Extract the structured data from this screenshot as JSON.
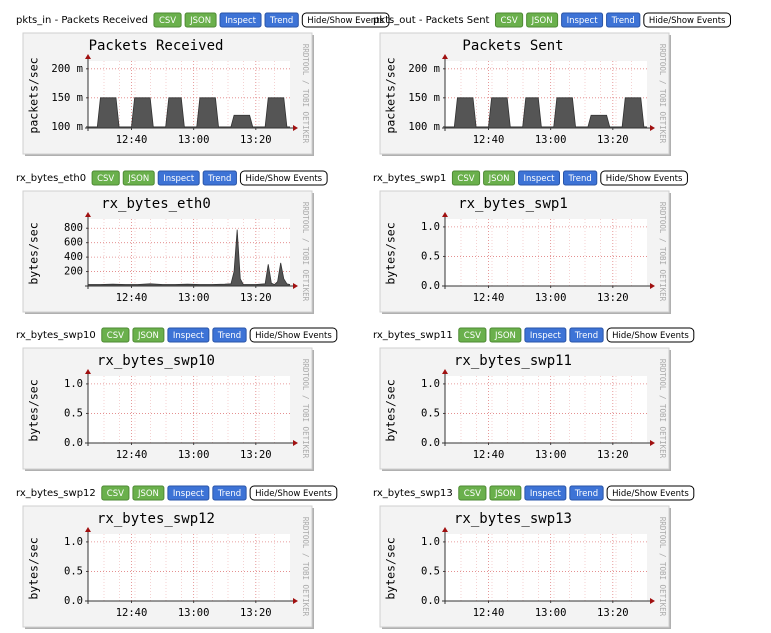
{
  "panels": [
    {
      "label": "pkts_in - Packets Received",
      "buttons": [
        "CSV",
        "JSON",
        "Inspect",
        "Trend",
        "Hide/Show Events"
      ]
    },
    {
      "label": "pkts_out - Packets Sent",
      "buttons": [
        "CSV",
        "JSON",
        "Inspect",
        "Trend",
        "Hide/Show Events"
      ]
    },
    {
      "label": "rx_bytes_eth0",
      "buttons": [
        "CSV",
        "JSON",
        "Inspect",
        "Trend",
        "Hide/Show Events"
      ]
    },
    {
      "label": "rx_bytes_swp1",
      "buttons": [
        "CSV",
        "JSON",
        "Inspect",
        "Trend",
        "Hide/Show Events"
      ]
    },
    {
      "label": "rx_bytes_swp10",
      "buttons": [
        "CSV",
        "JSON",
        "Inspect",
        "Trend",
        "Hide/Show Events"
      ]
    },
    {
      "label": "rx_bytes_swp11",
      "buttons": [
        "CSV",
        "JSON",
        "Inspect",
        "Trend",
        "Hide/Show Events"
      ]
    },
    {
      "label": "rx_bytes_swp12",
      "buttons": [
        "CSV",
        "JSON",
        "Inspect",
        "Trend",
        "Hide/Show Events"
      ]
    },
    {
      "label": "rx_bytes_swp13",
      "buttons": [
        "CSV",
        "JSON",
        "Inspect",
        "Trend",
        "Hide/Show Events"
      ]
    }
  ],
  "chart_data": [
    {
      "type": "area",
      "title": "Packets Received",
      "y_label": "packets/sec",
      "watermark": "RRDTOOL / TOBI OETIKER",
      "color": "#555555",
      "x": [
        746,
        749,
        750,
        755,
        756,
        760,
        761,
        766,
        767,
        771,
        772,
        776,
        777,
        781,
        782,
        787,
        788,
        792,
        793,
        798,
        799,
        803,
        804,
        809,
        810,
        811
      ],
      "values": [
        0.1,
        0.1,
        0.15,
        0.15,
        0.1,
        0.1,
        0.15,
        0.15,
        0.1,
        0.1,
        0.15,
        0.15,
        0.1,
        0.1,
        0.15,
        0.15,
        0.1,
        0.1,
        0.12,
        0.12,
        0.1,
        0.1,
        0.15,
        0.15,
        0.1,
        0.1
      ],
      "xlim": [
        746,
        811
      ],
      "xticks": [
        {
          "value": 760,
          "label": "12:40"
        },
        {
          "value": 780,
          "label": "13:00"
        },
        {
          "value": 800,
          "label": "13:20"
        }
      ],
      "ylim": [
        0.098,
        0.21
      ],
      "yticks": [
        {
          "value": 0.1,
          "label": "100 m"
        },
        {
          "value": 0.15,
          "label": "150 m"
        },
        {
          "value": 0.2,
          "label": "200 m"
        }
      ],
      "grid": true
    },
    {
      "type": "area",
      "title": "Packets Sent",
      "y_label": "packets/sec",
      "watermark": "RRDTOOL / TOBI OETIKER",
      "color": "#555555",
      "x": [
        746,
        749,
        750,
        755,
        756,
        760,
        761,
        766,
        767,
        771,
        772,
        776,
        777,
        781,
        782,
        787,
        788,
        792,
        793,
        798,
        799,
        803,
        804,
        809,
        810,
        811
      ],
      "values": [
        0.1,
        0.1,
        0.15,
        0.15,
        0.1,
        0.1,
        0.15,
        0.15,
        0.1,
        0.1,
        0.15,
        0.15,
        0.1,
        0.1,
        0.15,
        0.15,
        0.1,
        0.1,
        0.12,
        0.12,
        0.1,
        0.1,
        0.15,
        0.15,
        0.1,
        0.1
      ],
      "xlim": [
        746,
        811
      ],
      "xticks": [
        {
          "value": 760,
          "label": "12:40"
        },
        {
          "value": 780,
          "label": "13:00"
        },
        {
          "value": 800,
          "label": "13:20"
        }
      ],
      "ylim": [
        0.098,
        0.21
      ],
      "yticks": [
        {
          "value": 0.1,
          "label": "100 m"
        },
        {
          "value": 0.15,
          "label": "150 m"
        },
        {
          "value": 0.2,
          "label": "200 m"
        }
      ],
      "grid": true
    },
    {
      "type": "area",
      "title": "rx_bytes_eth0",
      "y_label": "bytes/sec",
      "watermark": "RRDTOOL / TOBI OETIKER",
      "color": "#555555",
      "x": [
        746,
        750,
        754,
        758,
        762,
        766,
        770,
        774,
        778,
        782,
        786,
        790,
        792,
        793,
        794,
        795,
        796,
        800,
        803,
        804,
        805,
        806,
        807,
        808,
        809,
        810,
        811
      ],
      "values": [
        20,
        20,
        25,
        20,
        20,
        30,
        20,
        20,
        25,
        20,
        20,
        25,
        30,
        200,
        780,
        100,
        20,
        20,
        30,
        300,
        40,
        20,
        60,
        320,
        100,
        30,
        20
      ],
      "xlim": [
        746,
        811
      ],
      "xticks": [
        {
          "value": 760,
          "label": "12:40"
        },
        {
          "value": 780,
          "label": "13:00"
        },
        {
          "value": 800,
          "label": "13:20"
        }
      ],
      "ylim": [
        0,
        900
      ],
      "yticks": [
        200,
        400,
        600,
        800
      ],
      "grid": true
    },
    {
      "type": "area",
      "title": "rx_bytes_swp1",
      "y_label": "bytes/sec",
      "watermark": "RRDTOOL / TOBI OETIKER",
      "color": "#555555",
      "x": [
        746,
        811
      ],
      "values": [
        0,
        0
      ],
      "xlim": [
        746,
        811
      ],
      "xticks": [
        {
          "value": 760,
          "label": "12:40"
        },
        {
          "value": 780,
          "label": "13:00"
        },
        {
          "value": 800,
          "label": "13:20"
        }
      ],
      "ylim": [
        0,
        1.1
      ],
      "yticks": [
        {
          "value": 0,
          "label": "0.0"
        },
        {
          "value": 0.5,
          "label": "0.5"
        },
        {
          "value": 1,
          "label": "1.0"
        }
      ],
      "grid": true
    },
    {
      "type": "area",
      "title": "rx_bytes_swp10",
      "y_label": "bytes/sec",
      "watermark": "RRDTOOL / TOBI OETIKER",
      "color": "#555555",
      "x": [
        746,
        811
      ],
      "values": [
        0,
        0
      ],
      "xlim": [
        746,
        811
      ],
      "xticks": [
        {
          "value": 760,
          "label": "12:40"
        },
        {
          "value": 780,
          "label": "13:00"
        },
        {
          "value": 800,
          "label": "13:20"
        }
      ],
      "ylim": [
        0,
        1.1
      ],
      "yticks": [
        {
          "value": 0,
          "label": "0.0"
        },
        {
          "value": 0.5,
          "label": "0.5"
        },
        {
          "value": 1,
          "label": "1.0"
        }
      ],
      "grid": true
    },
    {
      "type": "area",
      "title": "rx_bytes_swp11",
      "y_label": "bytes/sec",
      "watermark": "RRDTOOL / TOBI OETIKER",
      "color": "#555555",
      "x": [
        746,
        811
      ],
      "values": [
        0,
        0
      ],
      "xlim": [
        746,
        811
      ],
      "xticks": [
        {
          "value": 760,
          "label": "12:40"
        },
        {
          "value": 780,
          "label": "13:00"
        },
        {
          "value": 800,
          "label": "13:20"
        }
      ],
      "ylim": [
        0,
        1.1
      ],
      "yticks": [
        {
          "value": 0,
          "label": "0.0"
        },
        {
          "value": 0.5,
          "label": "0.5"
        },
        {
          "value": 1,
          "label": "1.0"
        }
      ],
      "grid": true
    },
    {
      "type": "area",
      "title": "rx_bytes_swp12",
      "y_label": "bytes/sec",
      "watermark": "RRDTOOL / TOBI OETIKER",
      "color": "#555555",
      "x": [
        746,
        811
      ],
      "values": [
        0,
        0
      ],
      "xlim": [
        746,
        811
      ],
      "xticks": [
        {
          "value": 760,
          "label": "12:40"
        },
        {
          "value": 780,
          "label": "13:00"
        },
        {
          "value": 800,
          "label": "13:20"
        }
      ],
      "ylim": [
        0,
        1.1
      ],
      "yticks": [
        {
          "value": 0,
          "label": "0.0"
        },
        {
          "value": 0.5,
          "label": "0.5"
        },
        {
          "value": 1,
          "label": "1.0"
        }
      ],
      "grid": true
    },
    {
      "type": "area",
      "title": "rx_bytes_swp13",
      "y_label": "bytes/sec",
      "watermark": "RRDTOOL / TOBI OETIKER",
      "color": "#555555",
      "x": [
        746,
        811
      ],
      "values": [
        0,
        0
      ],
      "xlim": [
        746,
        811
      ],
      "xticks": [
        {
          "value": 760,
          "label": "12:40"
        },
        {
          "value": 780,
          "label": "13:00"
        },
        {
          "value": 800,
          "label": "13:20"
        }
      ],
      "ylim": [
        0,
        1.1
      ],
      "yticks": [
        {
          "value": 0,
          "label": "0.0"
        },
        {
          "value": 0.5,
          "label": "0.5"
        },
        {
          "value": 1,
          "label": "1.0"
        }
      ],
      "grid": true
    }
  ]
}
